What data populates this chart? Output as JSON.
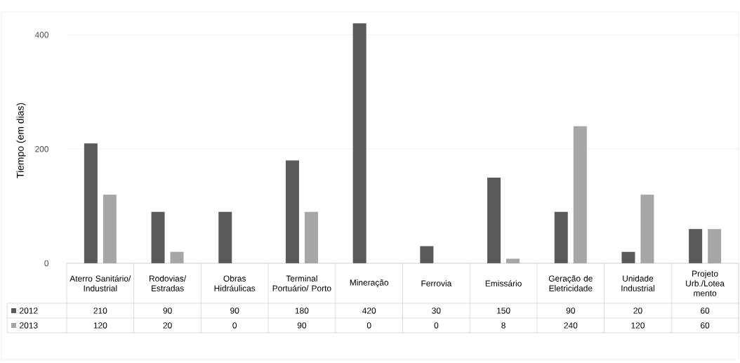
{
  "chart_data": {
    "type": "bar",
    "ylabel": "Tiempo (em dias)",
    "categories": [
      "Aterro Sanitário/ Industrial",
      "Rodovias/ Estradas",
      "Obras Hidráulicas",
      "Terminal Portuário/ Porto",
      "Mineração",
      "Ferrovia",
      "Emissário",
      "Geração de Eletricidade",
      "Unidade Industrial",
      "Projeto Urb./Lotea mento"
    ],
    "series": [
      {
        "name": "2012",
        "color": "#595959",
        "values": [
          210,
          90,
          90,
          180,
          420,
          30,
          150,
          90,
          20,
          60
        ]
      },
      {
        "name": "2013",
        "color": "#a6a6a6",
        "values": [
          120,
          20,
          0,
          90,
          0,
          0,
          8,
          240,
          120,
          60
        ]
      }
    ],
    "ylim": [
      0,
      440
    ],
    "yticks": [
      0,
      200,
      400
    ],
    "grid": "y",
    "legend": "bottom left",
    "data_labels": true
  }
}
